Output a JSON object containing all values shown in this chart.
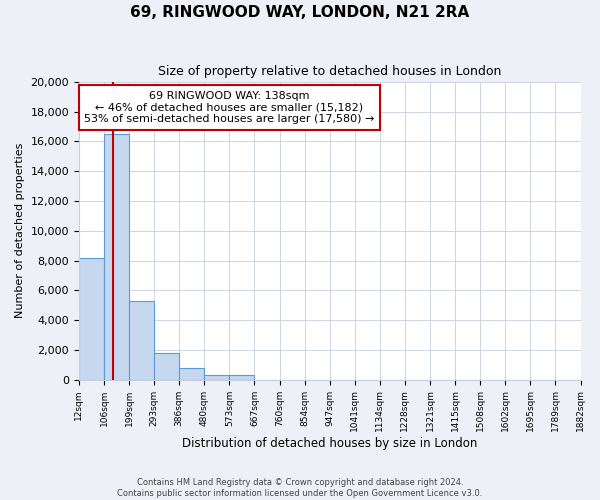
{
  "title": "69, RINGWOOD WAY, LONDON, N21 2RA",
  "subtitle": "Size of property relative to detached houses in London",
  "xlabel": "Distribution of detached houses by size in London",
  "ylabel": "Number of detached properties",
  "bar_values": [
    8200,
    16500,
    5300,
    1800,
    750,
    300,
    300,
    0,
    0,
    0,
    0,
    0,
    0,
    0,
    0,
    0,
    0,
    0,
    0,
    0
  ],
  "categories": [
    "12sqm",
    "106sqm",
    "199sqm",
    "293sqm",
    "386sqm",
    "480sqm",
    "573sqm",
    "667sqm",
    "760sqm",
    "854sqm",
    "947sqm",
    "1041sqm",
    "1134sqm",
    "1228sqm",
    "1321sqm",
    "1415sqm",
    "1508sqm",
    "1602sqm",
    "1695sqm",
    "1789sqm",
    "1882sqm"
  ],
  "bar_color": "#c5d8ef",
  "bar_edge_color": "#5b9bd5",
  "ylim": [
    0,
    20000
  ],
  "yticks": [
    0,
    2000,
    4000,
    6000,
    8000,
    10000,
    12000,
    14000,
    16000,
    18000,
    20000
  ],
  "property_line_color": "#c00000",
  "annotation_title": "69 RINGWOOD WAY: 138sqm",
  "annotation_line1": "← 46% of detached houses are smaller (15,182)",
  "annotation_line2": "53% of semi-detached houses are larger (17,580) →",
  "annotation_box_color": "#ffffff",
  "annotation_box_edge": "#c00000",
  "footer_line1": "Contains HM Land Registry data © Crown copyright and database right 2024.",
  "footer_line2": "Contains public sector information licensed under the Open Government Licence v3.0.",
  "background_color": "#edf1f7",
  "plot_bg_color": "#ffffff"
}
